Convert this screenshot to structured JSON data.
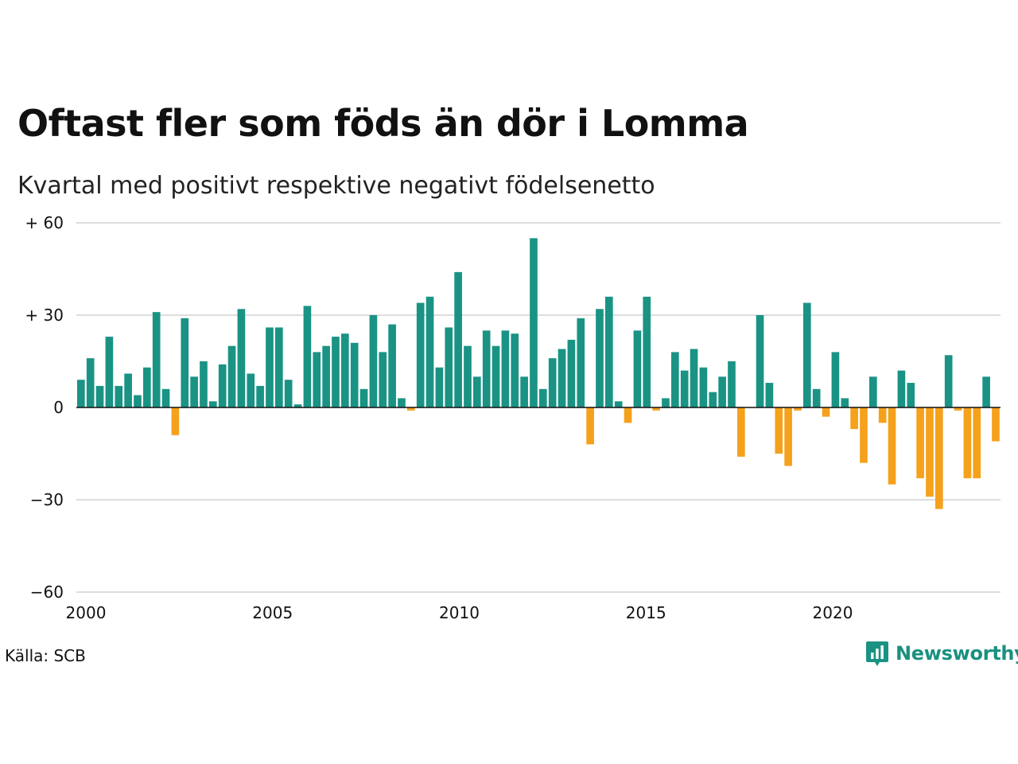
{
  "title": "Oftast fler som föds än dör i Lomma",
  "subtitle": "Kvartal med positivt respektive negativt födelsenetto",
  "source": "Källa: SCB",
  "brand": {
    "name": "Newsworthy",
    "icon": "newsworthy-logo-icon"
  },
  "colors": {
    "positive": "#1a9384",
    "negative": "#f5a11c",
    "grid": "#dddddd",
    "axis": "#111111"
  },
  "chart_data": {
    "type": "bar",
    "x_start_year": 2000,
    "periods_per_year": 4,
    "xlim": [
      2000,
      2024.75
    ],
    "ylim": [
      -60,
      60
    ],
    "grid": true,
    "x_ticks": [
      {
        "value": 2000,
        "label": "2000"
      },
      {
        "value": 2005,
        "label": "2005"
      },
      {
        "value": 2010,
        "label": "2010"
      },
      {
        "value": 2015,
        "label": "2015"
      },
      {
        "value": 2020,
        "label": "2020"
      }
    ],
    "y_ticks": [
      {
        "value": 60,
        "label": "+ 60"
      },
      {
        "value": 30,
        "label": "+ 30"
      },
      {
        "value": 0,
        "label": "0"
      },
      {
        "value": -30,
        "label": "−30"
      },
      {
        "value": -60,
        "label": "−60"
      }
    ],
    "values": [
      9,
      16,
      7,
      23,
      7,
      11,
      4,
      13,
      31,
      6,
      -9,
      29,
      10,
      15,
      2,
      14,
      20,
      32,
      11,
      7,
      26,
      26,
      9,
      1,
      33,
      18,
      20,
      23,
      24,
      21,
      6,
      30,
      18,
      27,
      3,
      -1,
      34,
      36,
      13,
      26,
      44,
      20,
      10,
      25,
      20,
      25,
      24,
      10,
      55,
      6,
      16,
      19,
      22,
      29,
      -12,
      32,
      36,
      2,
      -5,
      25,
      36,
      -1,
      3,
      18,
      12,
      19,
      13,
      5,
      10,
      15,
      -16,
      0,
      30,
      8,
      -15,
      -19,
      -1,
      34,
      6,
      -3,
      18,
      3,
      -7,
      -18,
      10,
      -5,
      -25,
      12,
      8,
      -23,
      -29,
      -33,
      17,
      -1,
      -23,
      -23,
      10,
      -11
    ]
  }
}
